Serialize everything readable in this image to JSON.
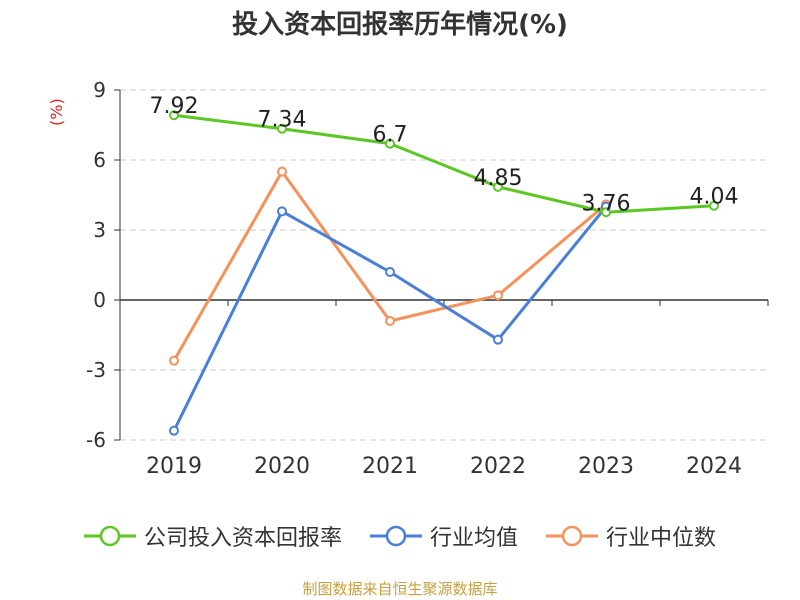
{
  "chart_data": {
    "type": "line",
    "title": "投入资本回报率历年情况(%)",
    "ylabel": "(%)",
    "categories": [
      "2019",
      "2020",
      "2021",
      "2022",
      "2023",
      "2024"
    ],
    "ylim": [
      -6,
      9
    ],
    "yticks": [
      9,
      6,
      3,
      0,
      -3,
      -6
    ],
    "grid": true,
    "legend_position": "bottom",
    "series": [
      {
        "name": "公司投入资本回报率",
        "color": "#5cc624",
        "labels": true,
        "values": [
          7.92,
          7.34,
          6.7,
          4.85,
          3.76,
          4.04
        ]
      },
      {
        "name": "行业均值",
        "color": "#4a7fd8",
        "labels": false,
        "values": [
          -5.6,
          3.8,
          1.2,
          -1.7,
          4.0,
          null
        ]
      },
      {
        "name": "行业中位数",
        "color": "#f5925a",
        "labels": false,
        "values": [
          -2.6,
          5.5,
          -0.9,
          0.2,
          4.1,
          null
        ]
      }
    ]
  },
  "source": "制图数据来自恒生聚源数据库"
}
